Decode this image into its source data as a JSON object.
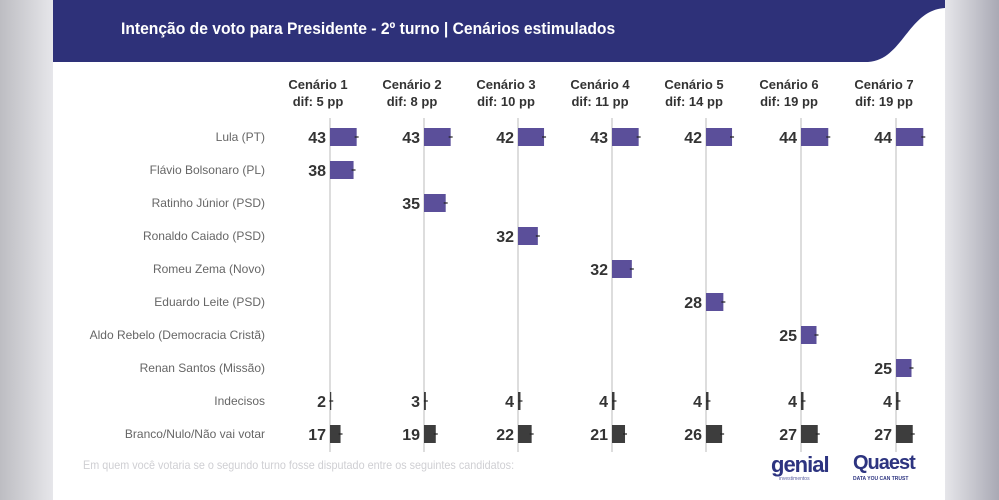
{
  "chart_data": {
    "type": "bar",
    "title": "Intenção de voto para Presidente - 2º turno | Cenários estimulados",
    "footnote": "Em quem você votaria se o segundo turno fosse disputado entre os seguintes candidatos:",
    "scenarios": [
      {
        "name": "Cenário 1",
        "dif": "dif: 5 pp"
      },
      {
        "name": "Cenário 2",
        "dif": "dif: 8 pp"
      },
      {
        "name": "Cenário 3",
        "dif": "dif: 10 pp"
      },
      {
        "name": "Cenário 4",
        "dif": "dif: 11 pp"
      },
      {
        "name": "Cenário 5",
        "dif": "dif: 14 pp"
      },
      {
        "name": "Cenário 6",
        "dif": "dif: 19 pp"
      },
      {
        "name": "Cenário 7",
        "dif": "dif: 19 pp"
      }
    ],
    "rows": [
      "Lula (PT)",
      "Flávio Bolsonaro (PL)",
      "Ratinho Júnior (PSD)",
      "Ronaldo Caiado (PSD)",
      "Romeu Zema (Novo)",
      "Eduardo Leite (PSD)",
      "Aldo Rebelo (Democracia Cristã)",
      "Renan Santos (Missão)",
      "Indecisos",
      "Branco/Nulo/Não vai votar"
    ],
    "values": [
      [
        43,
        43,
        42,
        43,
        42,
        44,
        44
      ],
      [
        38,
        null,
        null,
        null,
        null,
        null,
        null
      ],
      [
        null,
        35,
        null,
        null,
        null,
        null,
        null
      ],
      [
        null,
        null,
        32,
        null,
        null,
        null,
        null
      ],
      [
        null,
        null,
        null,
        32,
        null,
        null,
        null
      ],
      [
        null,
        null,
        null,
        null,
        28,
        null,
        null
      ],
      [
        null,
        null,
        null,
        null,
        null,
        25,
        null
      ],
      [
        null,
        null,
        null,
        null,
        null,
        null,
        25
      ],
      [
        2,
        3,
        4,
        4,
        4,
        4,
        4
      ],
      [
        17,
        19,
        22,
        21,
        26,
        27,
        27
      ]
    ],
    "colors": {
      "candidate": "#5b4f9a",
      "other": "#3d3d3d",
      "header": "#2e3179"
    }
  },
  "logos": {
    "genial": "genial",
    "genial_sub": "investimentos",
    "quaest": "Quaest",
    "quaest_sub": "DATA YOU CAN TRUST"
  }
}
